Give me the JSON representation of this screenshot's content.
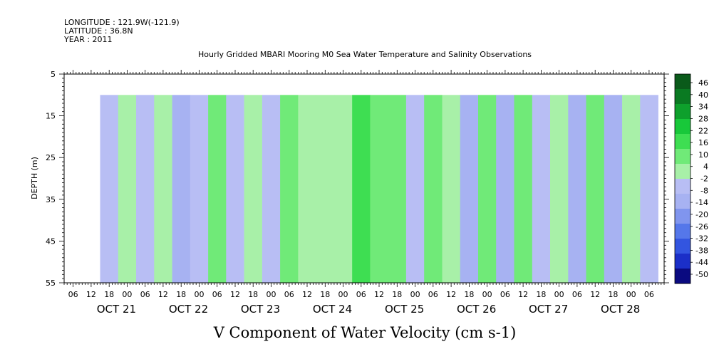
{
  "meta": {
    "longitude": "LONGITUDE : 121.9W(-121.9)",
    "latitude": "LATITUDE : 36.8N",
    "year": "YEAR : 2011"
  },
  "chart_data": {
    "type": "heatmap",
    "title": "Hourly Gridded MBARI Mooring M0 Sea Water Temperature and Salinity Observations",
    "subtitle": "V Component of Water Velocity (cm s-1)",
    "ylabel": "DEPTH (m)",
    "yticks": [
      "5",
      "15",
      "25",
      "35",
      "45",
      "55"
    ],
    "ytick_values": [
      5,
      15,
      25,
      35,
      45,
      55
    ],
    "ylim": [
      55,
      5
    ],
    "x_hour_ticks": [
      "06",
      "12",
      "18",
      "00",
      "06",
      "12",
      "18",
      "00",
      "06",
      "12",
      "18",
      "00",
      "06",
      "12",
      "18",
      "00",
      "06",
      "12",
      "18",
      "00",
      "06",
      "12",
      "18",
      "00",
      "06",
      "12",
      "18",
      "00",
      "06",
      "12",
      "18",
      "00",
      "06"
    ],
    "x_date_labels": [
      "OCT 21",
      "OCT 22",
      "OCT 23",
      "OCT 24",
      "OCT 25",
      "OCT 26",
      "OCT 27",
      "OCT 28"
    ],
    "xlim": [
      "2011-10-20 03:00",
      "2011-10-28 11:00"
    ],
    "data_extent": {
      "x": [
        "2011-10-20 15:00",
        "2011-10-28 09:00"
      ],
      "depth": [
        10,
        55
      ]
    },
    "colorbar": {
      "labels": [
        "46",
        "40",
        "34",
        "28",
        "22",
        "16",
        "10",
        "4",
        "-2",
        "-8",
        "-14",
        "-20",
        "-26",
        "-32",
        "-38",
        "-44",
        "-50"
      ],
      "min": -50,
      "max": 50,
      "colors": [
        "#0a0a80",
        "#1b2fc8",
        "#3355e0",
        "#5577ea",
        "#8095ee",
        "#a7b2f2",
        "#b8bef4",
        "#a8f0a8",
        "#70ea78",
        "#3ede52",
        "#18c83a",
        "#0ea02c",
        "#0a7a22",
        "#0a5a1a"
      ]
    },
    "column_values_top_to_bottom": [
      {
        "time": "2011-10-20 18:00",
        "v": -5
      },
      {
        "time": "2011-10-21 00:00",
        "v": 3
      },
      {
        "time": "2011-10-21 06:00",
        "v": -6
      },
      {
        "time": "2011-10-21 12:00",
        "v": 6
      },
      {
        "time": "2011-10-21 18:00",
        "v": -9
      },
      {
        "time": "2011-10-22 00:00",
        "v": -4
      },
      {
        "time": "2011-10-22 06:00",
        "v": 8
      },
      {
        "time": "2011-10-22 12:00",
        "v": -3
      },
      {
        "time": "2011-10-22 18:00",
        "v": 5
      },
      {
        "time": "2011-10-23 00:00",
        "v": -6
      },
      {
        "time": "2011-10-23 06:00",
        "v": 12
      },
      {
        "time": "2011-10-23 12:00",
        "v": 4
      },
      {
        "time": "2011-10-23 18:00",
        "v": 6
      },
      {
        "time": "2011-10-24 00:00",
        "v": 3
      },
      {
        "time": "2011-10-24 06:00",
        "v": 16
      },
      {
        "time": "2011-10-24 12:00",
        "v": 8
      },
      {
        "time": "2011-10-24 18:00",
        "v": 14
      },
      {
        "time": "2011-10-25 00:00",
        "v": -4
      },
      {
        "time": "2011-10-25 06:00",
        "v": 14
      },
      {
        "time": "2011-10-25 12:00",
        "v": 6
      },
      {
        "time": "2011-10-25 18:00",
        "v": -10
      },
      {
        "time": "2011-10-26 00:00",
        "v": 12
      },
      {
        "time": "2011-10-26 06:00",
        "v": -12
      },
      {
        "time": "2011-10-26 12:00",
        "v": 8
      },
      {
        "time": "2011-10-26 18:00",
        "v": -4
      },
      {
        "time": "2011-10-27 00:00",
        "v": 6
      },
      {
        "time": "2011-10-27 06:00",
        "v": -8
      },
      {
        "time": "2011-10-27 12:00",
        "v": 12
      },
      {
        "time": "2011-10-27 18:00",
        "v": -10
      },
      {
        "time": "2011-10-28 00:00",
        "v": 6
      },
      {
        "time": "2011-10-28 06:00",
        "v": -6
      }
    ]
  }
}
